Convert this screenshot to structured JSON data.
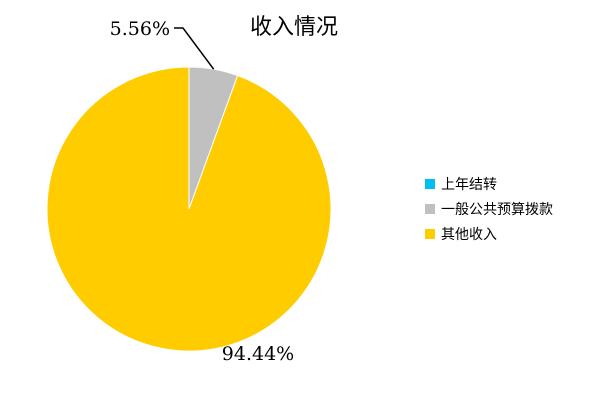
{
  "chart_data": {
    "type": "pie",
    "title": "收入情况",
    "legend_position": "right",
    "slices": [
      {
        "label": "上年结转",
        "value": 0,
        "data_label": "",
        "color": "#00BFF3"
      },
      {
        "label": "一般公共预算拨款",
        "value": 5.56,
        "data_label": "5.56%",
        "color": "#C0C0C0"
      },
      {
        "label": "其他收入",
        "value": 94.44,
        "data_label": "94.44%",
        "color": "#FFCC00"
      }
    ]
  }
}
